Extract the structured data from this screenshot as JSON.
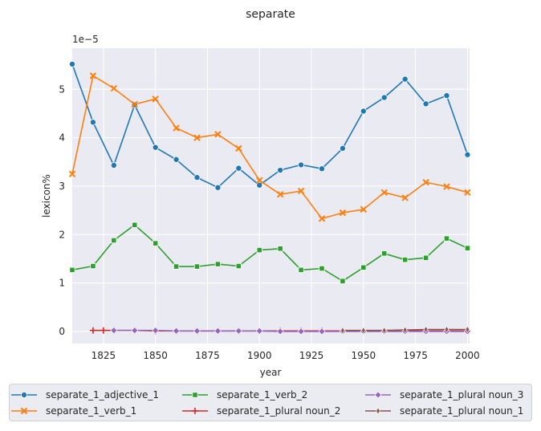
{
  "chart_data": {
    "type": "line",
    "title": "separate",
    "xlabel": "year",
    "ylabel": "lexicon%",
    "y_scale_label": "1e−5",
    "xlim": [
      1810,
      2001
    ],
    "ylim": [
      -0.25,
      5.85
    ],
    "x_ticks": [
      1825,
      1850,
      1875,
      1900,
      1925,
      1950,
      1975,
      2000
    ],
    "y_ticks": [
      0,
      1,
      2,
      3,
      4,
      5
    ],
    "grid": true,
    "legend_position": "bottom",
    "series": [
      {
        "name": "separate_1_adjective_1",
        "color": "#1f77b4",
        "marker": "circle",
        "x": [
          1810,
          1820,
          1830,
          1840,
          1850,
          1860,
          1870,
          1880,
          1890,
          1900,
          1910,
          1920,
          1930,
          1940,
          1950,
          1960,
          1970,
          1980,
          1990,
          2000
        ],
        "y": [
          5.52,
          4.32,
          3.43,
          4.68,
          3.8,
          3.55,
          3.18,
          2.97,
          3.37,
          3.02,
          3.33,
          3.44,
          3.36,
          3.78,
          4.55,
          4.83,
          5.21,
          4.7,
          4.87,
          3.65
        ]
      },
      {
        "name": "separate_1_verb_1",
        "color": "#ff7f0e",
        "marker": "x",
        "x": [
          1810,
          1820,
          1830,
          1840,
          1850,
          1860,
          1870,
          1880,
          1890,
          1900,
          1910,
          1920,
          1930,
          1940,
          1950,
          1960,
          1970,
          1980,
          1990,
          2000
        ],
        "y": [
          3.25,
          5.28,
          5.02,
          4.69,
          4.8,
          4.2,
          4.0,
          4.07,
          3.78,
          3.12,
          2.83,
          2.9,
          2.33,
          2.45,
          2.52,
          2.87,
          2.76,
          3.08,
          2.99,
          2.87
        ]
      },
      {
        "name": "separate_1_verb_2",
        "color": "#2ca02c",
        "marker": "square",
        "x": [
          1810,
          1820,
          1830,
          1840,
          1850,
          1860,
          1870,
          1880,
          1890,
          1900,
          1910,
          1920,
          1930,
          1940,
          1950,
          1960,
          1970,
          1980,
          1990,
          2000
        ],
        "y": [
          1.27,
          1.35,
          1.88,
          2.2,
          1.82,
          1.34,
          1.34,
          1.39,
          1.35,
          1.68,
          1.71,
          1.27,
          1.3,
          1.04,
          1.32,
          1.61,
          1.48,
          1.52,
          1.92,
          1.72
        ]
      },
      {
        "name": "separate_1_plural noun_2",
        "color": "#d62728",
        "marker": "plus",
        "x": [
          1820,
          1825,
          1830,
          1840,
          1850,
          1860,
          1870,
          1880,
          1890,
          1900,
          1910,
          1920,
          1930,
          1940,
          1950,
          1960,
          1970,
          1980,
          1990,
          2000
        ],
        "y": [
          0.02,
          0.02,
          0.02,
          0.02,
          0.01,
          0.01,
          0.01,
          0.01,
          0.01,
          0.01,
          0.01,
          0.01,
          0.01,
          0.01,
          0.01,
          0.01,
          0.01,
          0.01,
          0.01,
          0.01
        ]
      },
      {
        "name": "separate_1_plural noun_3",
        "color": "#9467bd",
        "marker": "diamond",
        "x": [
          1830,
          1840,
          1850,
          1860,
          1870,
          1880,
          1890,
          1900,
          1910,
          1920,
          1930,
          1940,
          1950,
          1960,
          1970,
          1980,
          1990,
          2000
        ],
        "y": [
          0.02,
          0.02,
          0.02,
          0.01,
          0.01,
          0.01,
          0.01,
          0.01,
          0.0,
          0.0,
          0.0,
          0.0,
          0.0,
          0.0,
          0.0,
          0.0,
          0.0,
          0.0
        ]
      },
      {
        "name": "separate_1_plural noun_1",
        "color": "#8c564b",
        "marker": "thin-diamond",
        "x": [
          1940,
          1950,
          1960,
          1970,
          1980,
          1990,
          2000
        ],
        "y": [
          0.02,
          0.02,
          0.02,
          0.03,
          0.04,
          0.04,
          0.04
        ]
      }
    ]
  }
}
